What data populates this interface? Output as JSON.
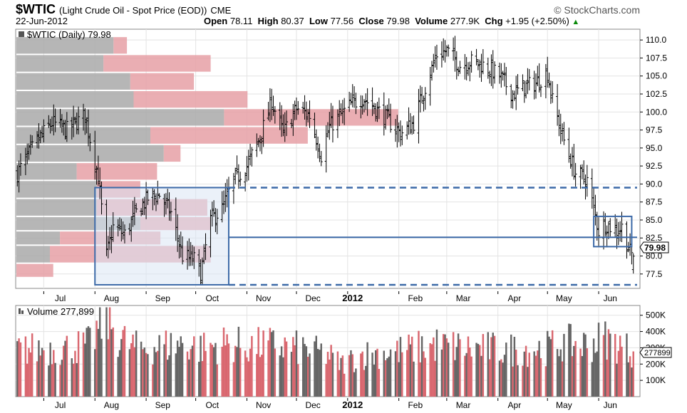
{
  "header": {
    "symbol": "$WTIC",
    "description": "(Light Crude Oil - Spot Price (EOD))",
    "exchange": "CME",
    "brand": "© StockCharts.com",
    "date": "22-Jun-2012",
    "open_label": "Open",
    "open": "78.11",
    "high_label": "High",
    "high": "80.37",
    "low_label": "Low",
    "low": "77.56",
    "close_label": "Close",
    "close": "79.98",
    "volume_label": "Volume",
    "volume": "277.9K",
    "chg_label": "Chg",
    "chg": "+1.95 (+2.50%)"
  },
  "chart_data": [
    {
      "type": "bar",
      "subtype": "ohlc",
      "legend": "$WTIC (Daily) 79.98",
      "last_value_label": "79.98",
      "ylim": [
        75.5,
        111.5
      ],
      "y_ticks": [
        77.5,
        80.0,
        82.5,
        85.0,
        87.5,
        90.0,
        92.5,
        95.0,
        97.5,
        100.0,
        102.5,
        105.0,
        107.5,
        110.0
      ],
      "y_tick_labels": [
        "77.5",
        "80.0",
        "82.5",
        "85.0",
        "87.5",
        "90.0",
        "92.5",
        "95.0",
        "97.5",
        "100.0",
        "102.5",
        "105.0",
        "107.5",
        "110.0"
      ],
      "x_tick_labels": [
        "Jul",
        "Aug",
        "Sep",
        "Oct",
        "Nov",
        "Dec",
        "2012",
        "Feb",
        "Mar",
        "Apr",
        "May",
        "Jun"
      ],
      "price_anchors": {
        "dates": [
          "2011-06-15",
          "2011-06-27",
          "2011-07-06",
          "2011-07-15",
          "2011-07-26",
          "2011-08-03",
          "2011-08-08",
          "2011-08-12",
          "2011-08-19",
          "2011-08-26",
          "2011-09-02",
          "2011-09-09",
          "2011-09-16",
          "2011-09-23",
          "2011-09-30",
          "2011-10-04",
          "2011-10-10",
          "2011-10-17",
          "2011-10-24",
          "2011-11-01",
          "2011-11-09",
          "2011-11-16",
          "2011-11-23",
          "2011-12-01",
          "2011-12-09",
          "2011-12-16",
          "2011-12-21",
          "2012-01-03",
          "2012-01-10",
          "2012-01-18",
          "2012-01-25",
          "2012-02-02",
          "2012-02-10",
          "2012-02-17",
          "2012-02-24",
          "2012-03-01",
          "2012-03-09",
          "2012-03-16",
          "2012-03-23",
          "2012-04-02",
          "2012-04-10",
          "2012-04-17",
          "2012-04-24",
          "2012-05-01",
          "2012-05-04",
          "2012-05-11",
          "2012-05-18",
          "2012-05-25",
          "2012-06-01",
          "2012-06-05",
          "2012-06-12",
          "2012-06-15",
          "2012-06-20",
          "2012-06-22"
        ],
        "closes": [
          91.5,
          96.0,
          98.5,
          97.5,
          99.5,
          91.0,
          80.0,
          84.0,
          83.0,
          86.0,
          88.0,
          88.5,
          86.0,
          80.0,
          79.5,
          77.5,
          85.0,
          86.5,
          90.5,
          92.5,
          96.5,
          101.5,
          97.0,
          100.5,
          99.5,
          94.0,
          98.0,
          101.0,
          102.0,
          100.5,
          99.0,
          97.0,
          98.5,
          103.5,
          108.0,
          108.5,
          106.5,
          107.0,
          106.5,
          105.0,
          102.5,
          103.5,
          104.0,
          105.5,
          101.5,
          96.0,
          91.5,
          90.5,
          83.5,
          84.5,
          83.5,
          84.0,
          80.5,
          79.98
        ]
      },
      "volume_profile": {
        "price_bins": [
          [
            77.0,
            79.0
          ],
          [
            79.0,
            81.5
          ],
          [
            81.5,
            83.5
          ],
          [
            83.5,
            85.5
          ],
          [
            85.5,
            88.0
          ],
          [
            88.0,
            90.5
          ],
          [
            90.5,
            93.0
          ],
          [
            93.0,
            95.5
          ],
          [
            95.5,
            98.0
          ],
          [
            98.0,
            100.5
          ],
          [
            100.5,
            103.0
          ],
          [
            103.0,
            105.5
          ],
          [
            105.5,
            108.0
          ],
          [
            108.0,
            110.5
          ]
        ],
        "down_volume": [
          0.0,
          0.1,
          0.13,
          0.37,
          0.24,
          0.24,
          0.18,
          0.44,
          0.4,
          0.62,
          0.35,
          0.34,
          0.26,
          0.29
        ],
        "up_volume": [
          0.11,
          0.48,
          0.3,
          0.21,
          0.33,
          0.13,
          0.24,
          0.05,
          0.47,
          0.52,
          0.34,
          0.19,
          0.32,
          0.04
        ]
      },
      "annotations": {
        "left_box": {
          "start": "2011-08-01",
          "end": "2011-10-21",
          "low": 76.0,
          "high": 89.5
        },
        "right_box": {
          "start": "2012-05-29",
          "end": "2012-06-21",
          "low": 81.3,
          "high": 85.5
        },
        "dashed_lines": [
          89.5,
          76.0
        ],
        "solid_line": {
          "start": "2011-10-21",
          "end": "2012-05-29",
          "value": 82.6
        }
      }
    },
    {
      "type": "bar",
      "legend": "Volume 277,899",
      "last_value_label": "277899",
      "ylim": [
        0,
        560000
      ],
      "y_ticks": [
        100000,
        200000,
        300000,
        400000,
        500000
      ],
      "y_tick_labels": [
        "100K",
        "200K",
        "300K",
        "400K",
        "500K"
      ],
      "x_tick_labels": [
        "Jul",
        "Aug",
        "Sep",
        "Oct",
        "Nov",
        "Dec",
        "2012",
        "Feb",
        "Mar",
        "Apr",
        "May",
        "Jun"
      ],
      "volume_level": {
        "dates": [
          "2011-06-15",
          "2011-07-15",
          "2011-07-28",
          "2011-08-04",
          "2011-08-09",
          "2011-08-16",
          "2011-08-26",
          "2011-09-09",
          "2011-09-23",
          "2011-10-05",
          "2011-10-20",
          "2011-11-01",
          "2011-11-15",
          "2011-12-01",
          "2011-12-20",
          "2011-12-28",
          "2012-01-10",
          "2012-02-01",
          "2012-02-24",
          "2012-03-15",
          "2012-04-10",
          "2012-05-01",
          "2012-05-10",
          "2012-05-25",
          "2012-06-05",
          "2012-06-22"
        ],
        "values": [
          290000,
          300000,
          320000,
          430000,
          480000,
          360000,
          300000,
          310000,
          330000,
          300000,
          330000,
          310000,
          320000,
          300000,
          260000,
          200000,
          260000,
          280000,
          320000,
          300000,
          290000,
          300000,
          330000,
          320000,
          360000,
          277899
        ]
      },
      "colors": {
        "up": "#d9676f",
        "down": "#666666"
      }
    }
  ]
}
